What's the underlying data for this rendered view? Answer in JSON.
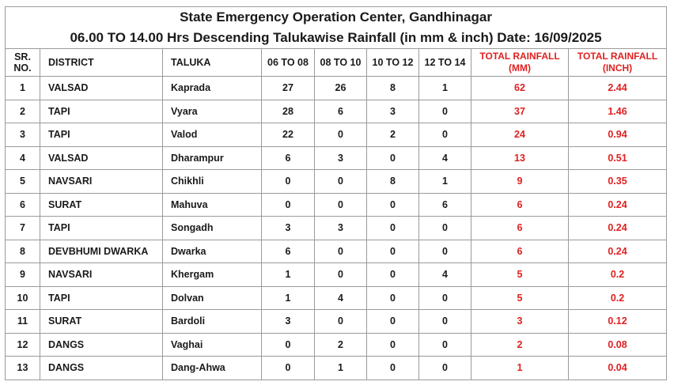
{
  "title_line1": "State Emergency Operation Center, Gandhinagar",
  "title_line2": "06.00 TO 14.00 Hrs Descending Talukawise Rainfall (in mm & inch) Date: 16/09/2025",
  "headers": {
    "sr_no": "SR. NO.",
    "district": "DISTRICT",
    "taluka": "TALUKA",
    "h1": "06 TO 08",
    "h2": "08 TO 10",
    "h3": "10 TO 12",
    "h4": "12 TO 14",
    "total_mm": "TOTAL RAINFALL (MM)",
    "total_inch": "TOTAL RAINFALL (INCH)"
  },
  "colors": {
    "accent_red": "#e02020",
    "border": "#9a9a9a"
  },
  "rows": [
    {
      "sr": "1",
      "district": "VALSAD",
      "taluka": "Kaprada",
      "h1": "27",
      "h2": "26",
      "h3": "8",
      "h4": "1",
      "mm": "62",
      "inch": "2.44"
    },
    {
      "sr": "2",
      "district": "TAPI",
      "taluka": "Vyara",
      "h1": "28",
      "h2": "6",
      "h3": "3",
      "h4": "0",
      "mm": "37",
      "inch": "1.46"
    },
    {
      "sr": "3",
      "district": "TAPI",
      "taluka": "Valod",
      "h1": "22",
      "h2": "0",
      "h3": "2",
      "h4": "0",
      "mm": "24",
      "inch": "0.94"
    },
    {
      "sr": "4",
      "district": "VALSAD",
      "taluka": "Dharampur",
      "h1": "6",
      "h2": "3",
      "h3": "0",
      "h4": "4",
      "mm": "13",
      "inch": "0.51"
    },
    {
      "sr": "5",
      "district": "NAVSARI",
      "taluka": "Chikhli",
      "h1": "0",
      "h2": "0",
      "h3": "8",
      "h4": "1",
      "mm": "9",
      "inch": "0.35"
    },
    {
      "sr": "6",
      "district": "SURAT",
      "taluka": "Mahuva",
      "h1": "0",
      "h2": "0",
      "h3": "0",
      "h4": "6",
      "mm": "6",
      "inch": "0.24"
    },
    {
      "sr": "7",
      "district": "TAPI",
      "taluka": "Songadh",
      "h1": "3",
      "h2": "3",
      "h3": "0",
      "h4": "0",
      "mm": "6",
      "inch": "0.24"
    },
    {
      "sr": "8",
      "district": "DEVBHUMI DWARKA",
      "taluka": "Dwarka",
      "h1": "6",
      "h2": "0",
      "h3": "0",
      "h4": "0",
      "mm": "6",
      "inch": "0.24"
    },
    {
      "sr": "9",
      "district": "NAVSARI",
      "taluka": "Khergam",
      "h1": "1",
      "h2": "0",
      "h3": "0",
      "h4": "4",
      "mm": "5",
      "inch": "0.2"
    },
    {
      "sr": "10",
      "district": "TAPI",
      "taluka": "Dolvan",
      "h1": "1",
      "h2": "4",
      "h3": "0",
      "h4": "0",
      "mm": "5",
      "inch": "0.2"
    },
    {
      "sr": "11",
      "district": "SURAT",
      "taluka": "Bardoli",
      "h1": "3",
      "h2": "0",
      "h3": "0",
      "h4": "0",
      "mm": "3",
      "inch": "0.12"
    },
    {
      "sr": "12",
      "district": "DANGS",
      "taluka": "Vaghai",
      "h1": "0",
      "h2": "2",
      "h3": "0",
      "h4": "0",
      "mm": "2",
      "inch": "0.08"
    },
    {
      "sr": "13",
      "district": "DANGS",
      "taluka": "Dang-Ahwa",
      "h1": "0",
      "h2": "1",
      "h3": "0",
      "h4": "0",
      "mm": "1",
      "inch": "0.04"
    }
  ]
}
